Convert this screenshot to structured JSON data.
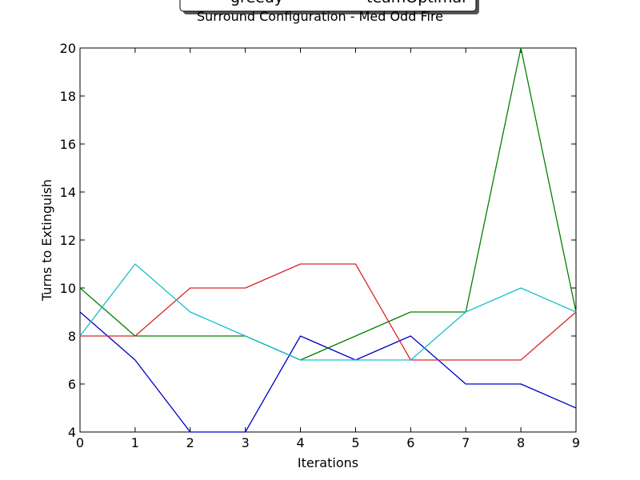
{
  "chart_data": {
    "type": "line",
    "title": "Surround Configuration - Med Odd Fire",
    "xlabel": "Iterations",
    "ylabel": "Turns to Extinguish",
    "xlim": [
      0,
      9
    ],
    "ylim": [
      4,
      20
    ],
    "xticks": [
      "0",
      "1",
      "2",
      "3",
      "4",
      "5",
      "6",
      "7",
      "8",
      "9"
    ],
    "yticks": [
      "4",
      "6",
      "8",
      "10",
      "12",
      "14",
      "16",
      "18",
      "20"
    ],
    "x": [
      0,
      1,
      2,
      3,
      4,
      5,
      6,
      7,
      8,
      9
    ],
    "grid": false,
    "legend": {
      "placement": "top-center, above plot",
      "entries": [
        "greedy",
        "teamOptimal"
      ]
    },
    "series": [
      {
        "name": "greedy",
        "color": "#0000cc",
        "values": [
          9,
          7,
          4,
          4,
          8,
          7,
          8,
          6,
          6,
          5
        ]
      },
      {
        "color": "#008000",
        "values": [
          10,
          8,
          8,
          8,
          7,
          8,
          9,
          9,
          20,
          9
        ]
      },
      {
        "name": "teamOptimal",
        "color": "#d62728",
        "values": [
          8,
          8,
          10,
          10,
          11,
          11,
          7,
          7,
          7,
          9
        ]
      },
      {
        "color": "#17becf",
        "values": [
          8,
          11,
          9,
          8,
          7,
          7,
          7,
          9,
          10,
          9
        ]
      }
    ]
  }
}
